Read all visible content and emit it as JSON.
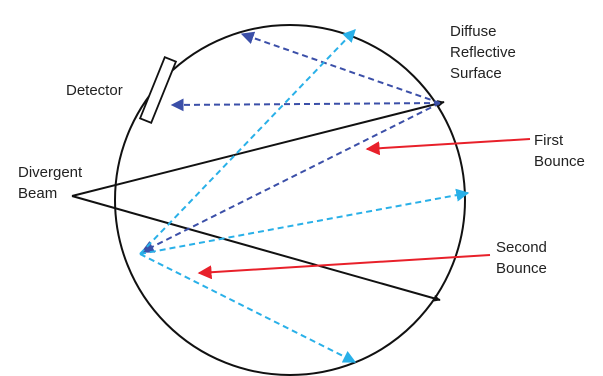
{
  "labels": {
    "detector": "Detector",
    "diffuse_surface": [
      "Diffuse",
      "Reflective",
      "Surface"
    ],
    "first_bounce": [
      "First",
      "Bounce"
    ],
    "divergent_beam": [
      "Divergent",
      "Beam"
    ],
    "second_bounce": [
      "Second",
      "Bounce"
    ]
  },
  "colors": {
    "outline": "#111111",
    "beam": "#111111",
    "bounce_pointer": "#e8202a",
    "reflection_dark": "#3b4fa8",
    "reflection_light": "#29b0e8"
  }
}
